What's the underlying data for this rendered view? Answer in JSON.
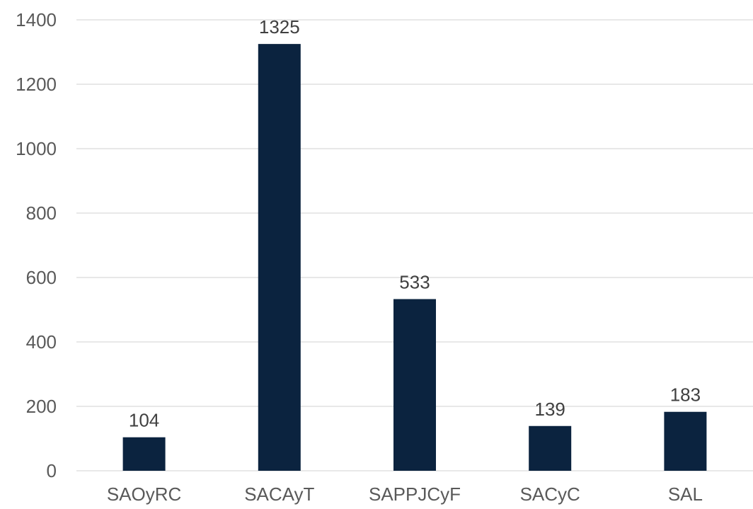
{
  "chart_data": {
    "type": "bar",
    "categories": [
      "SAOyRC",
      "SACAyT",
      "SAPPJCyF",
      "SACyC",
      "SAL"
    ],
    "values": [
      104,
      1325,
      533,
      139,
      183
    ],
    "data_labels": [
      "104",
      "1325",
      "533",
      "139",
      "183"
    ],
    "ylim": [
      0,
      1400
    ],
    "yticks": [
      0,
      200,
      400,
      600,
      800,
      1000,
      1200,
      1400
    ],
    "ytick_labels": [
      "0",
      "200",
      "400",
      "600",
      "800",
      "1000",
      "1200",
      "1400"
    ],
    "grid": true,
    "legend": "none",
    "bar_color": "#0b233f",
    "grid_color": "#d9d9d9"
  }
}
